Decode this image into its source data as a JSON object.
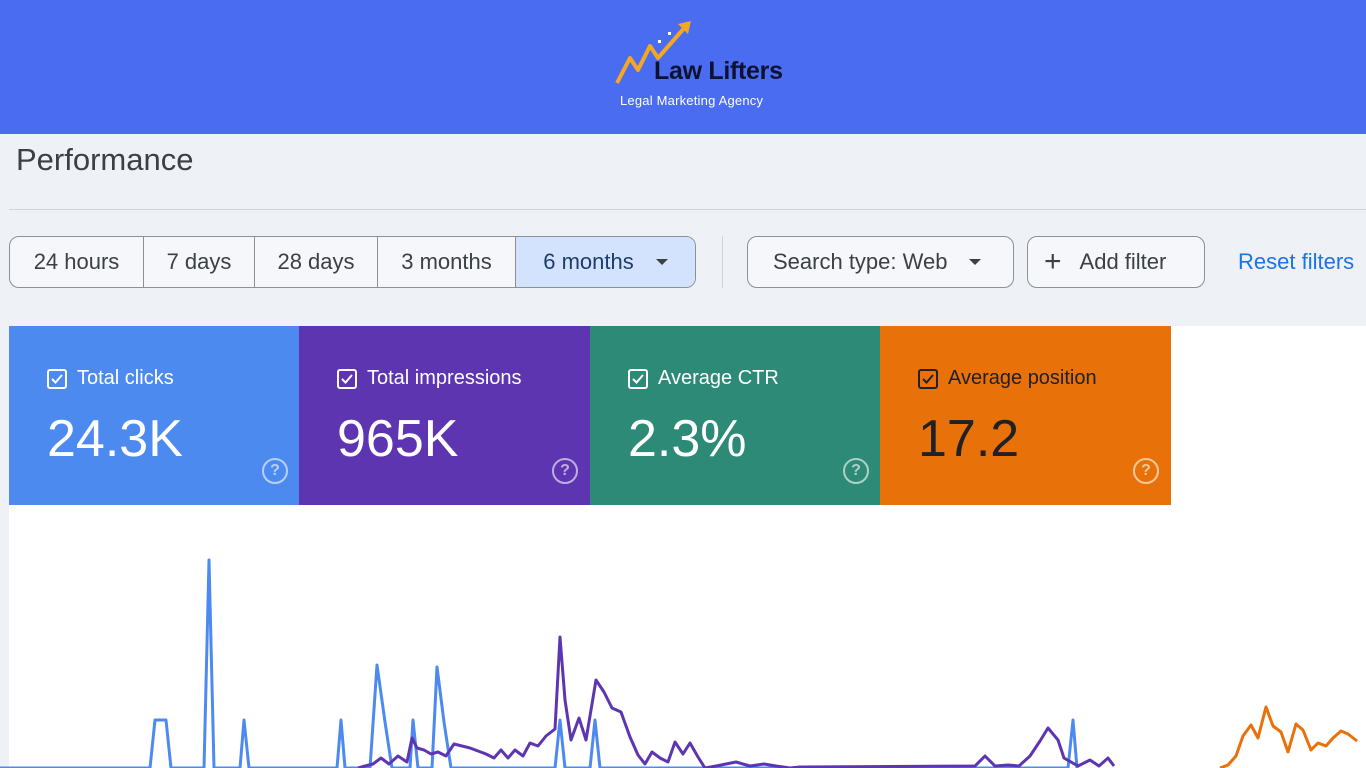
{
  "brand": {
    "name": "Law Lifters",
    "tagline": "Legal Marketing Agency",
    "banner_color": "#4a6cf0",
    "logo_icon": "rising-arrow-logo-icon"
  },
  "page": {
    "title": "Performance"
  },
  "date_range": {
    "options": [
      "24 hours",
      "7 days",
      "28 days",
      "3 months",
      "6 months"
    ],
    "selected": "6 months",
    "dropdown_icon": "caret-down-icon"
  },
  "filters": {
    "search_type": "Search type: Web",
    "add_filter": "Add filter",
    "reset": "Reset filters"
  },
  "metrics": [
    {
      "label": "Total clicks",
      "value": "24.3K",
      "color": "#4d8af0",
      "checked": true
    },
    {
      "label": "Total impressions",
      "value": "965K",
      "color": "#5e35b1",
      "checked": true
    },
    {
      "label": "Average CTR",
      "value": "2.3%",
      "color": "#2d8a76",
      "checked": true
    },
    {
      "label": "Average position",
      "value": "17.2",
      "color": "#e8710a",
      "checked": true
    }
  ],
  "chart_data": {
    "type": "line",
    "grid": false,
    "legend": "none",
    "series": [
      {
        "name": "Total clicks",
        "color": "#4d8af0",
        "points": [
          [
            0,
            0
          ],
          [
            150,
            0
          ],
          [
            155,
            48
          ],
          [
            166,
            48
          ],
          [
            171,
            0
          ],
          [
            204,
            0
          ],
          [
            209,
            208
          ],
          [
            214,
            0
          ],
          [
            240,
            0
          ],
          [
            244,
            48
          ],
          [
            249,
            0
          ],
          [
            337,
            0
          ],
          [
            341,
            48
          ],
          [
            345,
            0
          ],
          [
            370,
            0
          ],
          [
            377,
            103
          ],
          [
            385,
            46
          ],
          [
            392,
            0
          ],
          [
            410,
            0
          ],
          [
            413,
            48
          ],
          [
            418,
            0
          ],
          [
            432,
            0
          ],
          [
            437,
            101
          ],
          [
            444,
            46
          ],
          [
            451,
            0
          ],
          [
            555,
            0
          ],
          [
            560,
            48
          ],
          [
            565,
            0
          ],
          [
            590,
            0
          ],
          [
            595,
            48
          ],
          [
            600,
            0
          ],
          [
            1068,
            0
          ],
          [
            1073,
            48
          ],
          [
            1077,
            0
          ]
        ]
      },
      {
        "name": "Total impressions",
        "color": "#5e35b1",
        "points": [
          [
            358,
            0
          ],
          [
            365,
            2
          ],
          [
            373,
            4
          ],
          [
            381,
            10
          ],
          [
            389,
            4
          ],
          [
            398,
            12
          ],
          [
            407,
            6
          ],
          [
            412,
            30
          ],
          [
            417,
            20
          ],
          [
            424,
            18
          ],
          [
            431,
            14
          ],
          [
            438,
            16
          ],
          [
            446,
            12
          ],
          [
            454,
            24
          ],
          [
            462,
            22
          ],
          [
            470,
            20
          ],
          [
            478,
            17
          ],
          [
            486,
            14
          ],
          [
            494,
            10
          ],
          [
            501,
            18
          ],
          [
            508,
            10
          ],
          [
            515,
            18
          ],
          [
            523,
            12
          ],
          [
            530,
            25
          ],
          [
            538,
            22
          ],
          [
            546,
            32
          ],
          [
            555,
            39
          ],
          [
            560,
            131
          ],
          [
            565,
            68
          ],
          [
            571,
            28
          ],
          [
            579,
            50
          ],
          [
            586,
            28
          ],
          [
            591,
            58
          ],
          [
            596,
            88
          ],
          [
            604,
            76
          ],
          [
            612,
            60
          ],
          [
            621,
            56
          ],
          [
            630,
            31
          ],
          [
            638,
            13
          ],
          [
            645,
            4
          ],
          [
            652,
            16
          ],
          [
            660,
            10
          ],
          [
            668,
            6
          ],
          [
            675,
            26
          ],
          [
            683,
            14
          ],
          [
            690,
            25
          ],
          [
            698,
            11
          ],
          [
            705,
            0
          ],
          [
            716,
            2
          ],
          [
            726,
            4
          ],
          [
            736,
            6
          ],
          [
            750,
            2
          ],
          [
            764,
            4
          ],
          [
            776,
            2
          ],
          [
            790,
            0
          ],
          [
            800,
            1
          ],
          [
            975,
            2
          ],
          [
            985,
            12
          ],
          [
            995,
            2
          ],
          [
            1008,
            3
          ],
          [
            1019,
            2
          ],
          [
            1030,
            12
          ],
          [
            1040,
            27
          ],
          [
            1048,
            40
          ],
          [
            1058,
            28
          ],
          [
            1064,
            10
          ],
          [
            1078,
            2
          ],
          [
            1090,
            8
          ],
          [
            1099,
            2
          ],
          [
            1108,
            10
          ],
          [
            1114,
            2
          ]
        ]
      },
      {
        "name": "Average position",
        "color": "#e8710a",
        "points": [
          [
            1220,
            0
          ],
          [
            1228,
            3
          ],
          [
            1236,
            12
          ],
          [
            1243,
            32
          ],
          [
            1251,
            43
          ],
          [
            1258,
            30
          ],
          [
            1266,
            61
          ],
          [
            1273,
            42
          ],
          [
            1281,
            36
          ],
          [
            1288,
            16
          ],
          [
            1296,
            44
          ],
          [
            1303,
            38
          ],
          [
            1311,
            18
          ],
          [
            1318,
            25
          ],
          [
            1326,
            22
          ],
          [
            1333,
            30
          ],
          [
            1341,
            37
          ],
          [
            1348,
            34
          ],
          [
            1357,
            27
          ]
        ]
      }
    ]
  }
}
